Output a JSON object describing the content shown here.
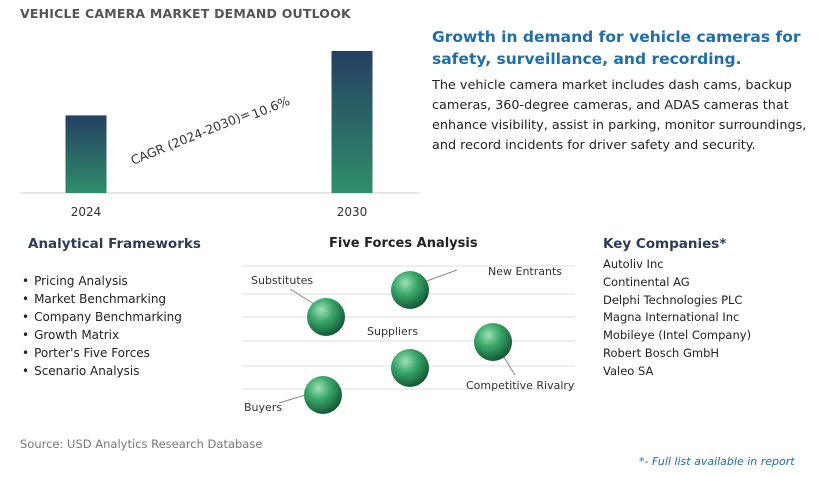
{
  "header": {
    "title": "VEHICLE CAMERA MARKET DEMAND OUTLOOK"
  },
  "chart_data": {
    "type": "bar",
    "categories": [
      "2024",
      "2030"
    ],
    "values": [
      1.0,
      1.83
    ],
    "cagr_label": "CAGR (2024-2030)=",
    "cagr_value": "10.6%",
    "colors": {
      "bar_top": "#263f63",
      "bar_bottom": "#2f8e69",
      "axis": "#cccccc"
    }
  },
  "summary": {
    "headline": "Growth in demand for vehicle cameras for safety, surveillance, and recording.",
    "description": "The vehicle camera market includes dash cams, backup cameras, 360-degree cameras, and ADAS cameras that enhance visibility, assist in parking, monitor surroundings, and record incidents for driver safety and security."
  },
  "frameworks": {
    "title": "Analytical Frameworks",
    "items": [
      "Pricing Analysis",
      "Market Benchmarking",
      "Company Benchmarking",
      "Growth Matrix",
      "Porter's Five Forces",
      "Scenario Analysis"
    ]
  },
  "five_forces": {
    "title": "Five Forces Analysis",
    "labels": {
      "substitutes": "Substitutes",
      "new_entrants": "New Entrants",
      "suppliers": "Suppliers",
      "competitive_rivalry": "Competitive Rivalry",
      "buyers": "Buyers"
    },
    "colors": {
      "sphere_light": "#9fe0b8",
      "sphere_mid": "#3aa86a",
      "sphere_dark": "#145a36"
    }
  },
  "companies": {
    "title": "Key Companies*",
    "items": [
      "Autoliv Inc",
      "Continental AG",
      "Delphi Technologies PLC",
      "Magna International Inc",
      "Mobileye (Intel Company)",
      "Robert Bosch GmbH",
      "Valeo SA"
    ]
  },
  "footer": {
    "source": "Source: USD Analytics Research Database",
    "note": "*- Full list available in report"
  }
}
